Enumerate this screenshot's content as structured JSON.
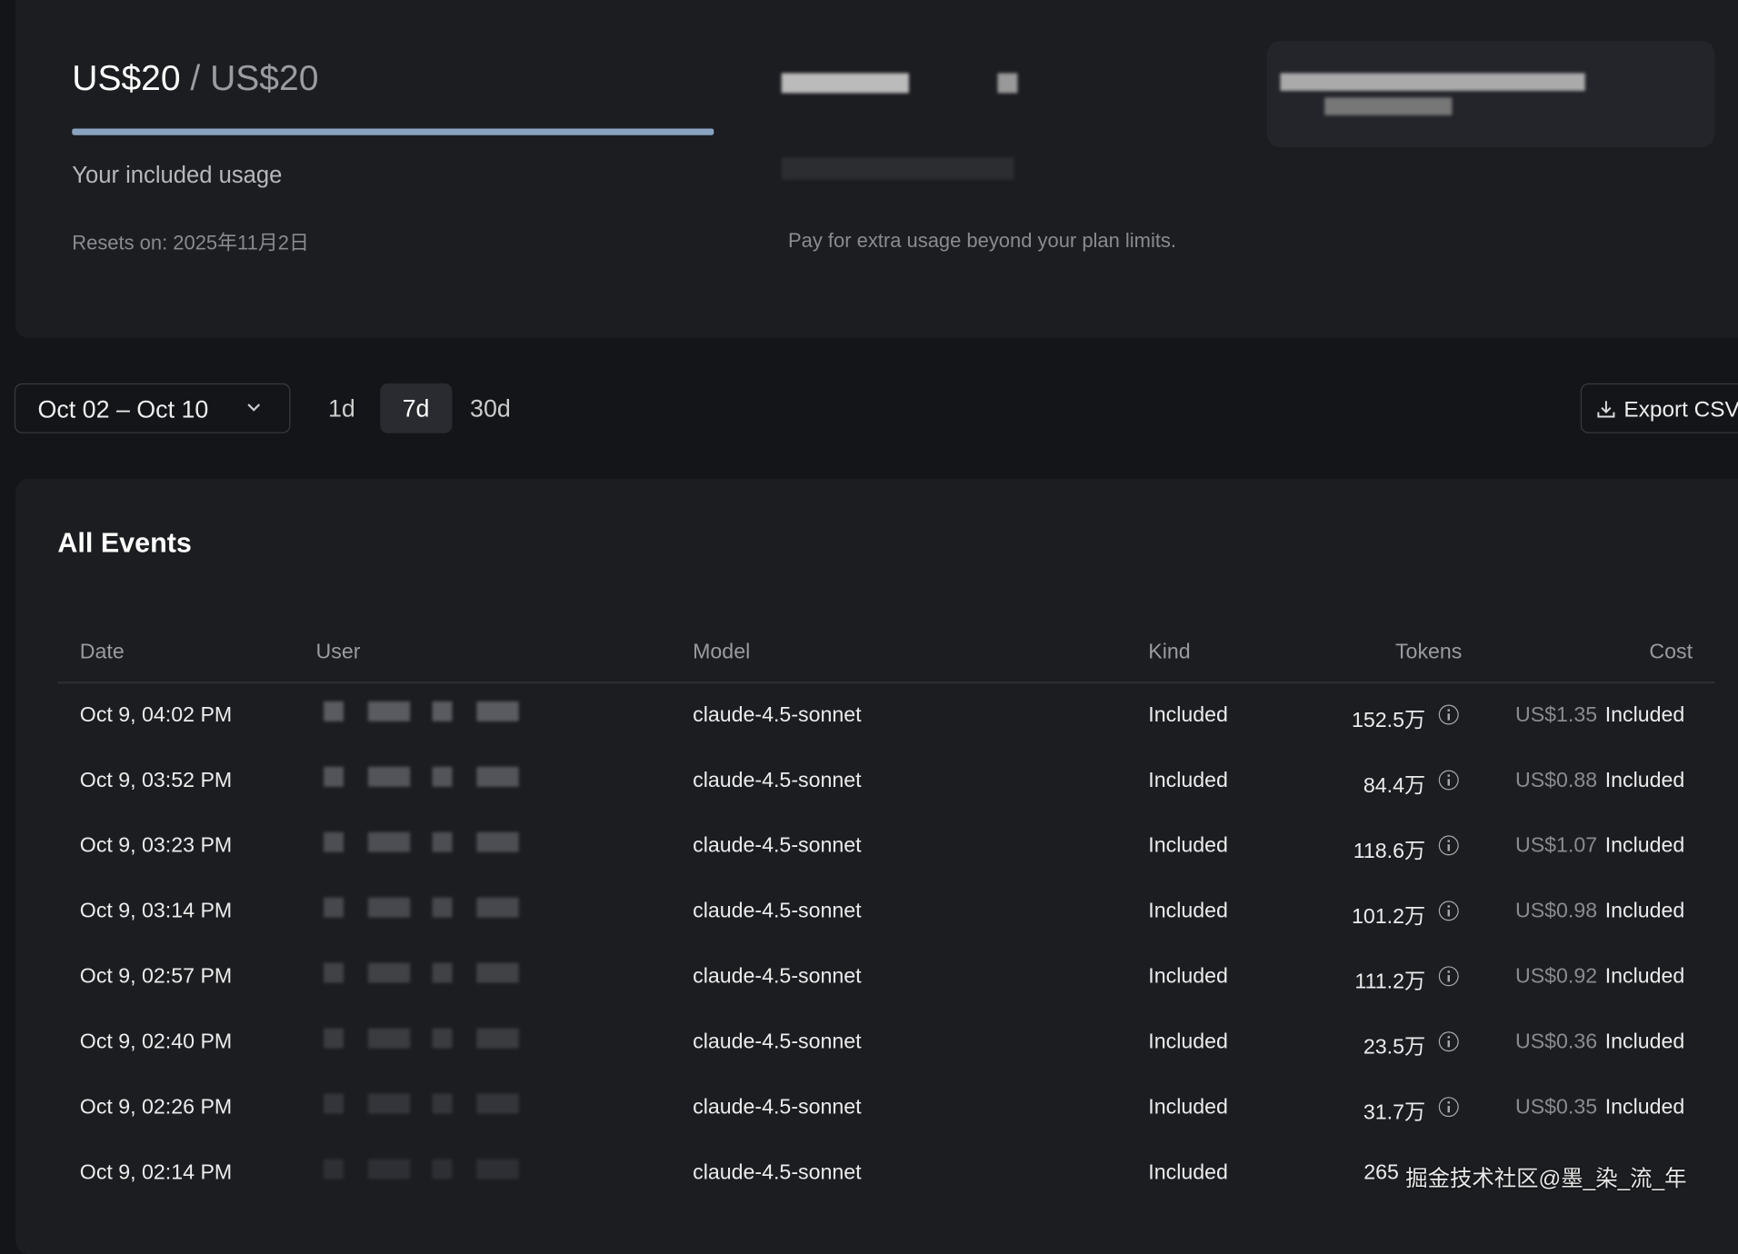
{
  "usage": {
    "used": "US$20",
    "limit": "/ US$20",
    "label": "Your included usage",
    "resets": "Resets on: 2025年11月2日"
  },
  "extra": {
    "description": "Pay for extra usage beyond your plan limits."
  },
  "controls": {
    "date_range": "Oct 02 – Oct 10",
    "ranges": [
      "1d",
      "7d",
      "30d"
    ],
    "export": "Export CSV"
  },
  "table": {
    "title": "All Events",
    "headers": [
      "Date",
      "User",
      "Model",
      "Kind",
      "Tokens",
      "Cost"
    ],
    "rows": [
      {
        "date": "Oct 9, 04:02 PM",
        "model": "claude-4.5-sonnet",
        "kind": "Included",
        "tokens": "152.5万",
        "cost": "US$1.35",
        "status": "Included"
      },
      {
        "date": "Oct 9, 03:52 PM",
        "model": "claude-4.5-sonnet",
        "kind": "Included",
        "tokens": "84.4万",
        "cost": "US$0.88",
        "status": "Included"
      },
      {
        "date": "Oct 9, 03:23 PM",
        "model": "claude-4.5-sonnet",
        "kind": "Included",
        "tokens": "118.6万",
        "cost": "US$1.07",
        "status": "Included"
      },
      {
        "date": "Oct 9, 03:14 PM",
        "model": "claude-4.5-sonnet",
        "kind": "Included",
        "tokens": "101.2万",
        "cost": "US$0.98",
        "status": "Included"
      },
      {
        "date": "Oct 9, 02:57 PM",
        "model": "claude-4.5-sonnet",
        "kind": "Included",
        "tokens": "111.2万",
        "cost": "US$0.92",
        "status": "Included"
      },
      {
        "date": "Oct 9, 02:40 PM",
        "model": "claude-4.5-sonnet",
        "kind": "Included",
        "tokens": "23.5万",
        "cost": "US$0.36",
        "status": "Included"
      },
      {
        "date": "Oct 9, 02:26 PM",
        "model": "claude-4.5-sonnet",
        "kind": "Included",
        "tokens": "31.7万",
        "cost": "US$0.35",
        "status": "Included"
      },
      {
        "date": "Oct 9, 02:14 PM",
        "model": "claude-4.5-sonnet",
        "kind": "Included",
        "tokens": "265"
      }
    ]
  },
  "watermark": "掘金技术社区@墨_染_流_年"
}
